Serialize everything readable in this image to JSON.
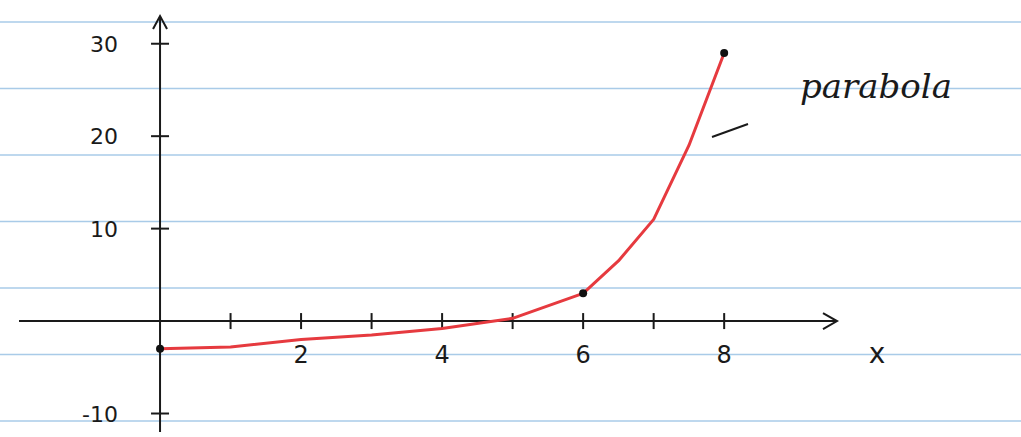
{
  "chart_data": {
    "type": "line",
    "annotation": "parabola",
    "x_label": "x",
    "xlim": [
      -2,
      9.6
    ],
    "ylim": [
      -12,
      33
    ],
    "xticks": [
      2,
      4,
      6,
      8
    ],
    "x_minor_ticks": [
      1,
      3,
      5,
      7
    ],
    "yticks": [
      -10,
      10,
      20,
      30
    ],
    "grid": false,
    "series": [
      {
        "type": "line",
        "color": "#e63a3f",
        "x": [
          0,
          1,
          2,
          3,
          4,
          5,
          6,
          6.5,
          7,
          7.5,
          8
        ],
        "values": [
          -3,
          -2.8,
          -2,
          -1.5,
          -0.8,
          0.3,
          3,
          6.5,
          11,
          19,
          29
        ]
      },
      {
        "type": "scatter",
        "color": "#111111",
        "marker": "circle",
        "x": [
          0,
          6,
          8
        ],
        "values": [
          -3,
          3,
          29
        ]
      }
    ]
  }
}
